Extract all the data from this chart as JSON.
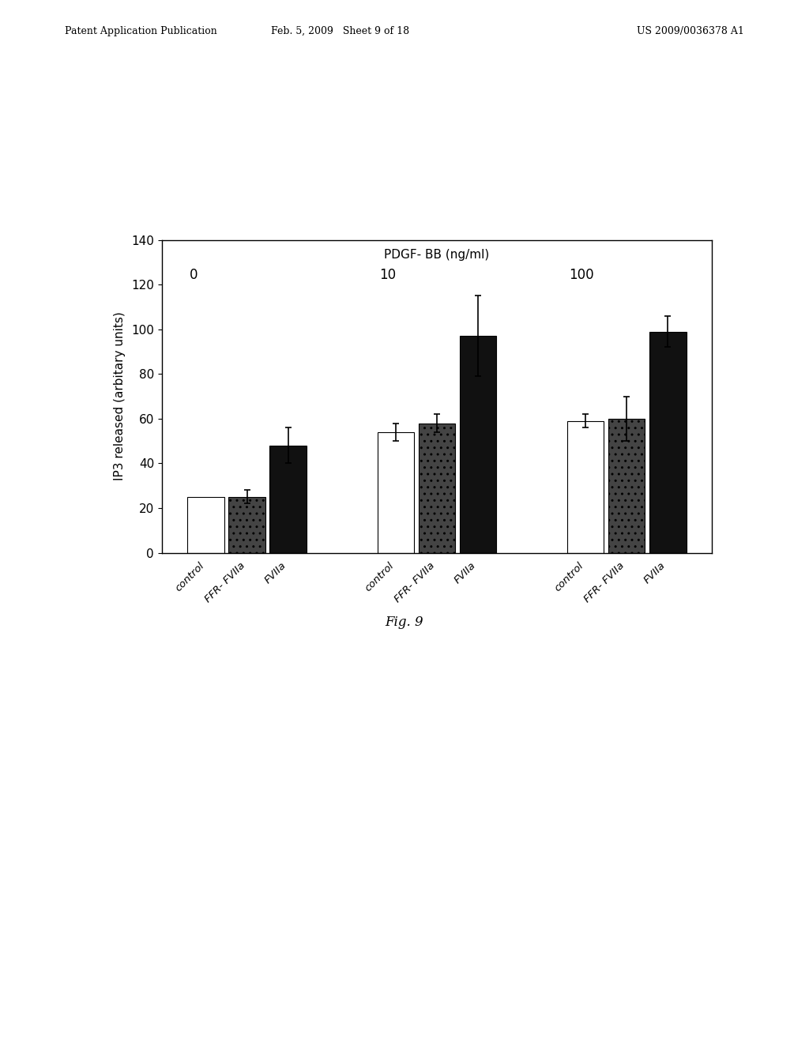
{
  "title": "PDGF- BB (ng/ml)",
  "ylabel": "IP3 released (arbitary units)",
  "ylim": [
    0,
    140
  ],
  "yticks": [
    0,
    20,
    40,
    60,
    80,
    100,
    120,
    140
  ],
  "groups": [
    "0",
    "10",
    "100"
  ],
  "bar_labels": [
    "control",
    "FFR- FVIIa",
    "FVIIa"
  ],
  "values": [
    [
      25,
      25,
      48
    ],
    [
      54,
      58,
      97
    ],
    [
      59,
      60,
      99
    ]
  ],
  "errors": [
    [
      0,
      3,
      8
    ],
    [
      4,
      4,
      18
    ],
    [
      3,
      10,
      7
    ]
  ],
  "bar_colors": [
    "white",
    "#444444",
    "#111111"
  ],
  "bar_hatches": [
    null,
    "..",
    null
  ],
  "background_color": "white",
  "figure_caption": "Fig. 9",
  "header_left": "Patent Application Publication",
  "header_mid": "Feb. 5, 2009   Sheet 9 of 18",
  "header_right": "US 2009/0036378 A1"
}
